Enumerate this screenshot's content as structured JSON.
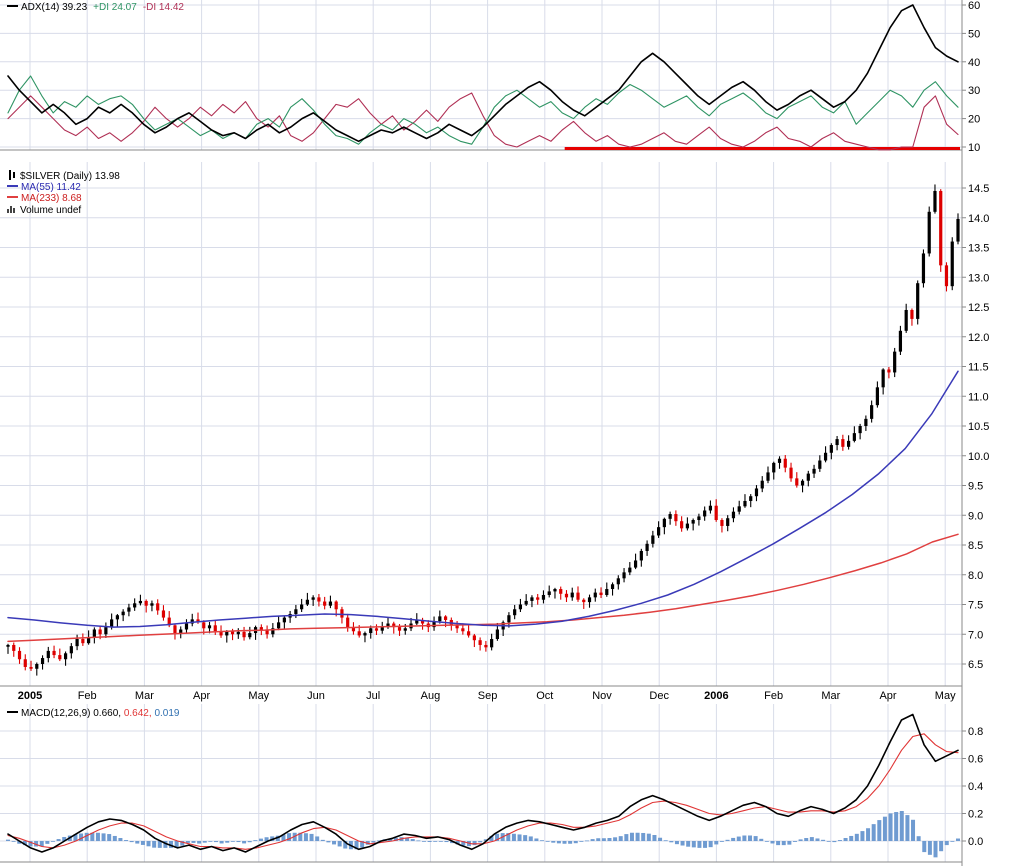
{
  "colors": {
    "grid": "#d8dce9",
    "axis": "#8a8a8a",
    "text": "#000000",
    "adx": "#000000",
    "plus_di": "#2f9464",
    "minus_di": "#b03055",
    "support": "#e60000",
    "candle_up": "#000000",
    "candle_down": "#dd0000",
    "ma55": "#3a3ab8",
    "ma233": "#e04040",
    "ma55_text": "#2a2ab0",
    "ma233_text": "#cc2020",
    "macd_line": "#000000",
    "macd_signal": "#e03535",
    "macd_hist": "#6f9bd1",
    "macd_hist_text": "#3070b0"
  },
  "panels": {
    "adx": {
      "legend": {
        "adx_label": "ADX(14) 39.23",
        "plus_di_label": "+DI 24.07",
        "minus_di_label": "-DI 14.42"
      }
    },
    "price": {
      "legend": {
        "symbol_label": "$SILVER (Daily) 13.98",
        "ma55_label": "MA(55) 11.42",
        "ma233_label": "MA(233) 8.68",
        "volume_label": "Volume undef"
      }
    },
    "macd": {
      "legend": {
        "macd_label": "MACD(12,26,9) 0.660,",
        "signal_value": "0.642,",
        "hist_value": "0.019"
      }
    }
  },
  "axis": {
    "months": [
      "2005",
      "Feb",
      "Mar",
      "Apr",
      "May",
      "Jun",
      "Jul",
      "Aug",
      "Sep",
      "Oct",
      "Nov",
      "Dec",
      "2006",
      "Feb",
      "Mar",
      "Apr",
      "May"
    ]
  },
  "chart_data": [
    {
      "type": "line",
      "title": "ADX(14) 39.23 +DI 24.07 -DI 14.42",
      "ylim": [
        5,
        62
      ],
      "yticks": [
        10,
        20,
        30,
        40,
        50,
        60
      ],
      "hline": {
        "value": 10,
        "start_frac": 0.587
      },
      "series": [
        {
          "name": "-DI",
          "color_key": "minus_di",
          "values": [
            20,
            24,
            28,
            24,
            20,
            16,
            14,
            17,
            13,
            15,
            12,
            15,
            19,
            24,
            20,
            17,
            20,
            24,
            21,
            25,
            22,
            26,
            20,
            17,
            21,
            14,
            12,
            15,
            20,
            25,
            24,
            27,
            22,
            18,
            21,
            16,
            19,
            23,
            19,
            24,
            27,
            29,
            21,
            14,
            11,
            10,
            12,
            14,
            12,
            16,
            19,
            15,
            12,
            14,
            11,
            10,
            11,
            13,
            15,
            12,
            11,
            14,
            17,
            13,
            11,
            10,
            12,
            15,
            17,
            13,
            12,
            10,
            13,
            15,
            12,
            11,
            10,
            9,
            9,
            10,
            10,
            24,
            28,
            18,
            14.4
          ]
        },
        {
          "name": "+DI",
          "color_key": "plus_di",
          "values": [
            22,
            30,
            35,
            28,
            22,
            26,
            24,
            28,
            25,
            27,
            28,
            25,
            20,
            16,
            18,
            20,
            17,
            14,
            16,
            13,
            15,
            13,
            18,
            20,
            17,
            24,
            27,
            23,
            18,
            14,
            13,
            11,
            15,
            18,
            16,
            20,
            18,
            15,
            17,
            14,
            12,
            11,
            17,
            24,
            28,
            30,
            27,
            24,
            26,
            22,
            20,
            24,
            27,
            25,
            29,
            32,
            30,
            27,
            24,
            26,
            28,
            24,
            21,
            25,
            27,
            29,
            26,
            22,
            20,
            24,
            26,
            28,
            24,
            22,
            26,
            18,
            22,
            26,
            30,
            28,
            24,
            30,
            33,
            28,
            24
          ]
        },
        {
          "name": "ADX(14)",
          "color_key": "adx",
          "values": [
            35,
            30,
            26,
            22,
            25,
            22,
            18,
            20,
            24,
            22,
            25,
            22,
            18,
            15,
            17,
            20,
            22,
            19,
            16,
            14,
            15,
            13,
            16,
            18,
            15,
            17,
            20,
            22,
            19,
            16,
            14,
            12,
            14,
            16,
            15,
            17,
            15,
            13,
            15,
            18,
            16,
            14,
            17,
            21,
            25,
            28,
            31,
            33,
            30,
            26,
            23,
            21,
            24,
            27,
            30,
            35,
            40,
            43,
            40,
            36,
            32,
            28,
            25,
            28,
            31,
            33,
            30,
            26,
            23,
            25,
            28,
            30,
            27,
            24,
            26,
            30,
            36,
            44,
            52,
            58,
            60,
            52,
            45,
            42,
            40
          ]
        }
      ]
    },
    {
      "type": "candlestick",
      "title": "$SILVER (Daily) 13.98",
      "ylim": [
        6.3,
        14.6
      ],
      "yticks": [
        6.5,
        7.0,
        7.5,
        8.0,
        8.5,
        9.0,
        9.5,
        10.0,
        10.5,
        11.0,
        11.5,
        12.0,
        12.5,
        13.0,
        13.5,
        14.0,
        14.5
      ],
      "closes": [
        6.82,
        6.72,
        6.58,
        6.45,
        6.42,
        6.5,
        6.6,
        6.72,
        6.65,
        6.58,
        6.68,
        6.8,
        6.92,
        6.85,
        6.95,
        7.08,
        7.0,
        7.12,
        7.25,
        7.32,
        7.38,
        7.45,
        7.52,
        7.56,
        7.48,
        7.52,
        7.4,
        7.28,
        7.15,
        7.02,
        7.08,
        7.18,
        7.25,
        7.2,
        7.1,
        7.15,
        7.05,
        6.98,
        7.05,
        7.0,
        7.04,
        6.95,
        7.02,
        7.12,
        7.08,
        7.0,
        7.1,
        7.2,
        7.28,
        7.34,
        7.42,
        7.5,
        7.58,
        7.62,
        7.55,
        7.48,
        7.55,
        7.42,
        7.28,
        7.12,
        7.05,
        6.98,
        7.02,
        7.1,
        7.06,
        7.12,
        7.18,
        7.12,
        7.06,
        7.1,
        7.18,
        7.24,
        7.18,
        7.12,
        7.22,
        7.3,
        7.24,
        7.16,
        7.1,
        7.05,
        6.98,
        6.9,
        6.82,
        6.78,
        6.92,
        7.08,
        7.2,
        7.32,
        7.42,
        7.5,
        7.56,
        7.62,
        7.58,
        7.66,
        7.72,
        7.76,
        7.68,
        7.62,
        7.7,
        7.58,
        7.54,
        7.62,
        7.7,
        7.66,
        7.76,
        7.84,
        7.94,
        8.04,
        8.12,
        8.24,
        8.4,
        8.52,
        8.66,
        8.8,
        8.94,
        9.02,
        8.9,
        8.78,
        8.86,
        8.92,
        8.98,
        9.08,
        9.16,
        8.92,
        8.82,
        8.95,
        9.06,
        9.15,
        9.24,
        9.32,
        9.45,
        9.58,
        9.72,
        9.88,
        9.95,
        9.8,
        9.62,
        9.5,
        9.58,
        9.7,
        9.78,
        9.92,
        10.05,
        10.18,
        10.28,
        10.15,
        10.25,
        10.38,
        10.5,
        10.62,
        10.85,
        11.15,
        11.45,
        11.4,
        11.75,
        12.1,
        12.45,
        12.3,
        12.9,
        13.4,
        14.1,
        14.45,
        13.2,
        12.85,
        13.6,
        13.98
      ],
      "overlays": [
        {
          "name": "MA(55)",
          "color_key": "ma55",
          "values": [
            7.28,
            7.24,
            7.19,
            7.15,
            7.12,
            7.13,
            7.16,
            7.2,
            7.24,
            7.27,
            7.3,
            7.32,
            7.34,
            7.33,
            7.3,
            7.26,
            7.22,
            7.18,
            7.15,
            7.14,
            7.17,
            7.22,
            7.3,
            7.4,
            7.52,
            7.66,
            7.84,
            8.05,
            8.28,
            8.52,
            8.78,
            9.05,
            9.35,
            9.7,
            10.12,
            10.7,
            11.42
          ]
        },
        {
          "name": "MA(233)",
          "color_key": "ma233",
          "values": [
            6.88,
            6.9,
            6.92,
            6.94,
            6.96,
            6.98,
            7.0,
            7.02,
            7.04,
            7.06,
            7.07,
            7.09,
            7.1,
            7.11,
            7.12,
            7.13,
            7.14,
            7.15,
            7.16,
            7.17,
            7.19,
            7.21,
            7.24,
            7.28,
            7.32,
            7.37,
            7.43,
            7.5,
            7.57,
            7.65,
            7.74,
            7.84,
            7.95,
            8.07,
            8.2,
            8.35,
            8.55,
            8.68
          ]
        }
      ]
    },
    {
      "type": "line+histogram",
      "title": "MACD(12,26,9) 0.660, 0.642, 0.019",
      "ylim": [
        -0.18,
        0.98
      ],
      "yticks": [
        0.0,
        0.2,
        0.4,
        0.6,
        0.8
      ],
      "histogram": "macd_minus_signal",
      "series": [
        {
          "name": "MACD",
          "color_key": "macd_line",
          "values": [
            0.05,
            0.0,
            -0.05,
            -0.08,
            -0.05,
            0.0,
            0.05,
            0.1,
            0.14,
            0.16,
            0.15,
            0.12,
            0.08,
            0.02,
            -0.02,
            -0.05,
            -0.03,
            -0.06,
            -0.04,
            -0.07,
            -0.05,
            -0.08,
            -0.04,
            0.0,
            0.03,
            0.08,
            0.12,
            0.14,
            0.1,
            0.05,
            -0.02,
            -0.06,
            -0.04,
            0.0,
            0.02,
            0.05,
            0.04,
            0.02,
            0.03,
            0.01,
            -0.03,
            -0.06,
            -0.02,
            0.05,
            0.1,
            0.13,
            0.15,
            0.14,
            0.12,
            0.1,
            0.08,
            0.1,
            0.13,
            0.15,
            0.18,
            0.25,
            0.3,
            0.33,
            0.3,
            0.26,
            0.22,
            0.18,
            0.15,
            0.18,
            0.22,
            0.26,
            0.28,
            0.25,
            0.2,
            0.18,
            0.22,
            0.25,
            0.23,
            0.2,
            0.24,
            0.3,
            0.4,
            0.55,
            0.72,
            0.88,
            0.92,
            0.7,
            0.58,
            0.62,
            0.66
          ]
        },
        {
          "name": "Signal",
          "color_key": "macd_signal",
          "values": [
            0.04,
            0.02,
            -0.01,
            -0.04,
            -0.05,
            -0.03,
            0.0,
            0.04,
            0.08,
            0.11,
            0.13,
            0.13,
            0.11,
            0.07,
            0.03,
            0.0,
            -0.02,
            -0.04,
            -0.04,
            -0.05,
            -0.05,
            -0.06,
            -0.05,
            -0.03,
            -0.01,
            0.02,
            0.06,
            0.09,
            0.1,
            0.08,
            0.04,
            0.0,
            -0.02,
            -0.01,
            0.0,
            0.02,
            0.03,
            0.03,
            0.03,
            0.02,
            0.0,
            -0.02,
            -0.02,
            0.0,
            0.04,
            0.08,
            0.11,
            0.13,
            0.13,
            0.12,
            0.1,
            0.1,
            0.11,
            0.13,
            0.15,
            0.19,
            0.24,
            0.28,
            0.29,
            0.28,
            0.26,
            0.23,
            0.2,
            0.19,
            0.2,
            0.22,
            0.24,
            0.25,
            0.23,
            0.21,
            0.21,
            0.22,
            0.22,
            0.21,
            0.22,
            0.25,
            0.31,
            0.4,
            0.52,
            0.66,
            0.76,
            0.78,
            0.7,
            0.65,
            0.642
          ]
        }
      ]
    }
  ]
}
